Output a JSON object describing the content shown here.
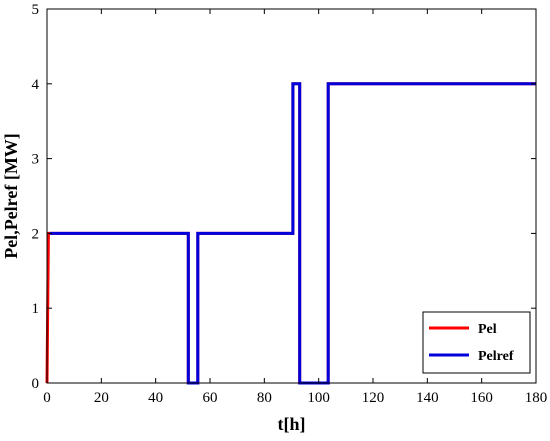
{
  "chart_data": {
    "type": "line",
    "title": "",
    "xlabel": "t[h]",
    "ylabel": "Pel,Pelref [MW]",
    "xlim": [
      0,
      180
    ],
    "ylim": [
      0,
      5
    ],
    "xticks": [
      0,
      20,
      40,
      60,
      80,
      100,
      120,
      140,
      160,
      180
    ],
    "yticks": [
      0,
      1,
      2,
      3,
      4,
      5
    ],
    "grid": false,
    "legend_position": "bottom-right",
    "series": [
      {
        "name": "Pel",
        "color": "#ff0000",
        "x": [
          0,
          0.5,
          1,
          52,
          52,
          55.5,
          55.5,
          90.5,
          90.5,
          93,
          93,
          103.5,
          103.5,
          180
        ],
        "y": [
          0,
          2.0,
          2.0,
          2.0,
          0,
          0,
          2.0,
          2.0,
          4.0,
          4.0,
          0,
          0,
          4.0,
          4.0
        ]
      },
      {
        "name": "Pelref",
        "color": "#0000dd",
        "x": [
          1,
          52,
          52,
          55.5,
          55.5,
          90.5,
          90.5,
          93,
          93,
          103.5,
          103.5,
          180
        ],
        "y": [
          2.0,
          2.0,
          0,
          0,
          2.0,
          2.0,
          4.0,
          4.0,
          0,
          0,
          4.0,
          4.0
        ]
      }
    ]
  }
}
